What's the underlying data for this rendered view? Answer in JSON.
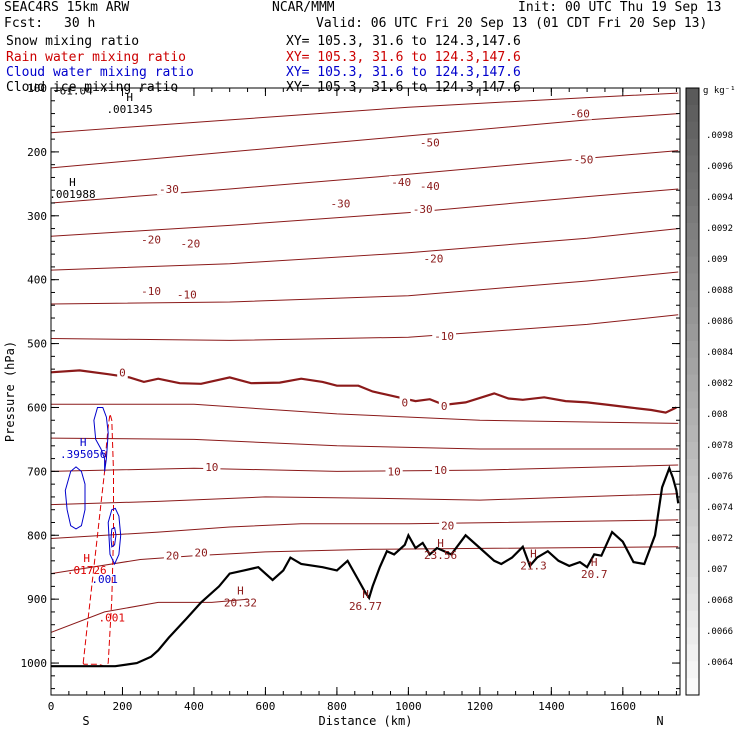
{
  "header": {
    "model": "SEAC4RS 15km ARW",
    "institution": "NCAR/MMM",
    "init": "Init: 00 UTC Thu 19 Sep 13",
    "fcst_label": "Fcst:",
    "fcst_value": "30 h",
    "valid": "Valid: 06 UTC Fri 20 Sep 13 (01 CDT Fri 20 Sep 13)",
    "fields": [
      {
        "name": "Snow mixing ratio",
        "xy": "XY= 105.3, 31.6 to 124.3,147.6",
        "color": "#000000"
      },
      {
        "name": "Rain water mixing ratio",
        "xy": "XY= 105.3, 31.6 to 124.3,147.6",
        "color": "#cc0000"
      },
      {
        "name": "Cloud water mixing ratio",
        "xy": "XY= 105.3, 31.6 to 124.3,147.6",
        "color": "#0000cc"
      },
      {
        "name": "Cloud ice mixing ratio",
        "xy": "XY= 105.3, 31.6 to 124.3,147.6",
        "color": "#000000"
      }
    ]
  },
  "chart_data": {
    "type": "line",
    "xlabel": "Distance (km)",
    "ylabel": "Pressure (hPa)",
    "xlim": [
      0,
      1760
    ],
    "ylim": [
      1050,
      100
    ],
    "xticks": [
      0,
      200,
      400,
      600,
      800,
      1000,
      1200,
      1400,
      1600
    ],
    "yticks": [
      100,
      200,
      300,
      400,
      500,
      600,
      700,
      800,
      900,
      1000
    ],
    "endpoints": {
      "left": "S",
      "right": "N"
    },
    "colorbar": {
      "unit": "g kg⁻¹",
      "ticks": [
        ".0064",
        ".0066",
        ".0068",
        ".007",
        ".0072",
        ".0074",
        ".0076",
        ".0078",
        ".008",
        ".0082",
        ".0084",
        ".0086",
        ".0088",
        ".009",
        ".0092",
        ".0094",
        ".0096",
        ".0098"
      ]
    },
    "colors": {
      "temperature": "#8b1a1a",
      "freezing_level": "#8b1a1a",
      "rain": "#dd0000",
      "cloud_water": "#0000cc",
      "terrain": "#000000"
    },
    "temperature_labels": [
      {
        "text": "-60",
        "x": 1480,
        "p": 140
      },
      {
        "text": "-50",
        "x": 1060,
        "p": 185
      },
      {
        "text": "-50",
        "x": 1490,
        "p": 212
      },
      {
        "text": "-40",
        "x": 980,
        "p": 247
      },
      {
        "text": "-40",
        "x": 1060,
        "p": 253
      },
      {
        "text": "-30",
        "x": 330,
        "p": 258
      },
      {
        "text": "-30",
        "x": 810,
        "p": 281
      },
      {
        "text": "-30",
        "x": 1040,
        "p": 289
      },
      {
        "text": "-20",
        "x": 280,
        "p": 337
      },
      {
        "text": "-20",
        "x": 390,
        "p": 343
      },
      {
        "text": "-20",
        "x": 1070,
        "p": 367
      },
      {
        "text": "-10",
        "x": 280,
        "p": 418
      },
      {
        "text": "-10",
        "x": 380,
        "p": 423
      },
      {
        "text": "-10",
        "x": 1100,
        "p": 488
      },
      {
        "text": "0",
        "x": 200,
        "p": 545
      },
      {
        "text": "0",
        "x": 990,
        "p": 592
      },
      {
        "text": "0",
        "x": 1100,
        "p": 598
      },
      {
        "text": "10",
        "x": 450,
        "p": 693
      },
      {
        "text": "10",
        "x": 960,
        "p": 700
      },
      {
        "text": "10",
        "x": 1090,
        "p": 698
      },
      {
        "text": "20",
        "x": 340,
        "p": 832
      },
      {
        "text": "20",
        "x": 420,
        "p": 827
      },
      {
        "text": "20",
        "x": 1110,
        "p": 785
      }
    ],
    "extrema": [
      {
        "text": "H",
        "value": ".001345",
        "x": 220,
        "p": 120,
        "color": "#000000"
      },
      {
        "text": "H",
        "value": ".001988",
        "x": 60,
        "p": 253,
        "color": "#000000"
      },
      {
        "text": "H",
        "value": ".395056",
        "x": 90,
        "p": 660,
        "color": "#0000cc"
      },
      {
        "text": "H",
        "value": ".01726",
        "x": 100,
        "p": 842,
        "color": "#dd0000"
      },
      {
        "text": "H",
        "value": "20.32",
        "x": 530,
        "p": 893,
        "color": "#8b1a1a"
      },
      {
        "text": "H",
        "value": "26.77",
        "x": 880,
        "p": 898,
        "color": "#8b1a1a"
      },
      {
        "text": "H",
        "value": "23.56",
        "x": 1090,
        "p": 818,
        "color": "#8b1a1a"
      },
      {
        "text": "H",
        "value": "21.3",
        "x": 1350,
        "p": 835,
        "color": "#8b1a1a"
      },
      {
        "text": "H",
        "value": "20.7",
        "x": 1520,
        "p": 848,
        "color": "#8b1a1a"
      }
    ],
    "other_labels": [
      {
        "text": "-61.04",
        "x": 0,
        "p": 110,
        "color": "#000000"
      },
      {
        "text": ".001",
        "x": 150,
        "p": 875,
        "color": "#0000cc"
      },
      {
        "text": ".001",
        "x": 170,
        "p": 935,
        "color": "#dd0000"
      }
    ],
    "terrain_profile": {
      "x": [
        0,
        60,
        120,
        180,
        240,
        280,
        300,
        330,
        380,
        420,
        470,
        500,
        540,
        580,
        620,
        650,
        670,
        700,
        760,
        800,
        830,
        860,
        880,
        890,
        900,
        920,
        940,
        960,
        990,
        1000,
        1020,
        1040,
        1060,
        1080,
        1120,
        1160,
        1200,
        1240,
        1260,
        1290,
        1320,
        1340,
        1360,
        1390,
        1420,
        1450,
        1480,
        1500,
        1520,
        1540,
        1570,
        1600,
        1630,
        1660,
        1690,
        1710,
        1730,
        1740,
        1750,
        1755
      ],
      "p": [
        1005,
        1005,
        1005,
        1005,
        1000,
        990,
        980,
        960,
        930,
        905,
        880,
        860,
        855,
        850,
        870,
        855,
        835,
        845,
        850,
        855,
        840,
        870,
        890,
        898,
        880,
        850,
        825,
        830,
        815,
        800,
        820,
        812,
        830,
        820,
        830,
        800,
        820,
        840,
        845,
        835,
        818,
        848,
        835,
        825,
        840,
        848,
        842,
        850,
        830,
        832,
        795,
        810,
        842,
        845,
        800,
        725,
        695,
        710,
        730,
        750
      ]
    },
    "freezing_level": {
      "x": [
        0,
        80,
        160,
        220,
        260,
        300,
        360,
        420,
        500,
        560,
        640,
        700,
        760,
        800,
        860,
        900,
        940,
        980,
        1020,
        1060,
        1100,
        1160,
        1200,
        1240,
        1280,
        1320,
        1380,
        1440,
        1500,
        1560,
        1620,
        1680,
        1720,
        1750
      ],
      "p": [
        545,
        542,
        548,
        553,
        560,
        555,
        562,
        563,
        553,
        562,
        561,
        555,
        560,
        566,
        566,
        575,
        580,
        585,
        590,
        587,
        596,
        592,
        585,
        578,
        586,
        588,
        584,
        590,
        592,
        596,
        600,
        604,
        608,
        600
      ]
    },
    "temperature_lines": [
      {
        "x": [
          0,
          500,
          1000,
          1500,
          1755
        ],
        "p": [
          170,
          150,
          130,
          115,
          108
        ]
      },
      {
        "x": [
          0,
          500,
          1000,
          1500,
          1755
        ],
        "p": [
          225,
          200,
          175,
          150,
          140
        ]
      },
      {
        "x": [
          0,
          500,
          1000,
          1500,
          1755
        ],
        "p": [
          280,
          258,
          235,
          210,
          198
        ]
      },
      {
        "x": [
          0,
          500,
          1000,
          1500,
          1755
        ],
        "p": [
          332,
          315,
          295,
          270,
          258
        ]
      },
      {
        "x": [
          0,
          500,
          1000,
          1500,
          1755
        ],
        "p": [
          385,
          375,
          358,
          335,
          320
        ]
      },
      {
        "x": [
          0,
          500,
          1000,
          1500,
          1755
        ],
        "p": [
          438,
          435,
          425,
          402,
          388
        ]
      },
      {
        "x": [
          0,
          500,
          1000,
          1500,
          1755
        ],
        "p": [
          492,
          495,
          490,
          470,
          455
        ]
      },
      {
        "x": [
          0,
          400,
          800,
          1200,
          1755
        ],
        "p": [
          595,
          595,
          610,
          620,
          625
        ]
      },
      {
        "x": [
          0,
          400,
          800,
          1200,
          1755
        ],
        "p": [
          648,
          650,
          660,
          665,
          665
        ]
      },
      {
        "x": [
          0,
          400,
          800,
          1200,
          1755
        ],
        "p": [
          700,
          695,
          700,
          698,
          690
        ]
      },
      {
        "x": [
          0,
          300,
          600,
          900,
          1200,
          1755
        ],
        "p": [
          752,
          747,
          740,
          742,
          745,
          735
        ]
      },
      {
        "x": [
          0,
          300,
          500,
          700,
          1000,
          1755
        ],
        "p": [
          805,
          795,
          787,
          782,
          782,
          776
        ]
      },
      {
        "x": [
          0,
          250,
          400,
          600,
          900,
          1755
        ],
        "p": [
          860,
          838,
          832,
          826,
          822,
          818
        ]
      },
      {
        "x": [
          0,
          150,
          300,
          450,
          550
        ],
        "p": [
          952,
          920,
          905,
          905,
          900
        ]
      }
    ],
    "rain_contour": {
      "x": [
        90,
        100,
        110,
        120,
        130,
        140,
        150,
        155,
        160,
        165,
        170,
        175,
        175,
        170,
        160,
        150,
        140,
        130,
        120,
        110,
        100,
        92,
        90
      ],
      "p": [
        1000,
        950,
        900,
        850,
        800,
        750,
        700,
        660,
        630,
        610,
        620,
        700,
        800,
        900,
        1000,
        1005,
        1003,
        1002,
        1002,
        1002,
        1002,
        1002,
        1000
      ]
    },
    "cloud_water_contours": [
      {
        "x": [
          40,
          55,
          70,
          85,
          95,
          95,
          85,
          70,
          55,
          45,
          40
        ],
        "p": [
          730,
          700,
          693,
          700,
          720,
          760,
          785,
          790,
          785,
          760,
          730
        ]
      },
      {
        "x": [
          120,
          130,
          145,
          155,
          160,
          155,
          150,
          150,
          140,
          125,
          120
        ],
        "p": [
          620,
          600,
          600,
          615,
          640,
          680,
          700,
          680,
          665,
          650,
          620
        ]
      },
      {
        "x": [
          160,
          170,
          180,
          190,
          195,
          190,
          178,
          165,
          160
        ],
        "p": [
          780,
          760,
          758,
          770,
          800,
          830,
          845,
          830,
          780
        ]
      },
      {
        "x": [
          170,
          178,
          182,
          178,
          170,
          168,
          170
        ],
        "p": [
          790,
          788,
          800,
          815,
          818,
          805,
          790
        ]
      }
    ]
  }
}
